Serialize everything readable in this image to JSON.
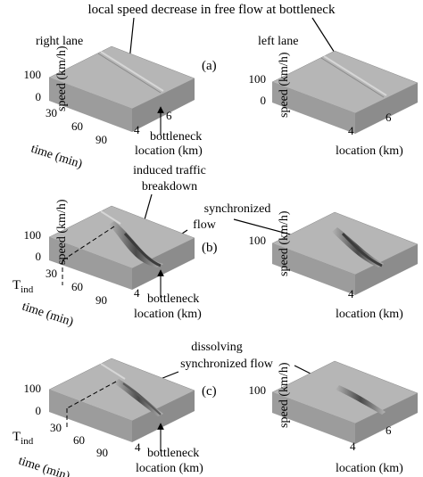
{
  "figure": {
    "top_annotation": "local speed decrease in free flow at bottleneck",
    "lane_right": "right lane",
    "lane_left": "left lane",
    "panels": [
      {
        "label": "(a)"
      },
      {
        "label": "(b)",
        "annotation_1": "induced traffic",
        "annotation_2": "breakdown",
        "annotation_3": "synchronized",
        "annotation_4": "flow",
        "t_ind": "T",
        "t_ind_sub": "ind"
      },
      {
        "label": "(c)",
        "annotation_1": "dissolving",
        "annotation_2": "synchronized flow",
        "t_ind": "T",
        "t_ind_sub": "ind"
      }
    ],
    "axes": {
      "speed_label": "speed (km/h)",
      "time_label": "time (min)",
      "location_label": "location (km)",
      "bottleneck_label": "bottleneck",
      "speed_ticks": [
        "0",
        "100"
      ],
      "time_ticks": [
        "30",
        "60",
        "90"
      ],
      "location_ticks": [
        "4",
        "6"
      ]
    },
    "colors": {
      "surface_top": "#b4b4b4",
      "surface_side": "#9a9a9a",
      "surface_front": "#8a8a8a",
      "dip": "#5a5a5a"
    }
  }
}
